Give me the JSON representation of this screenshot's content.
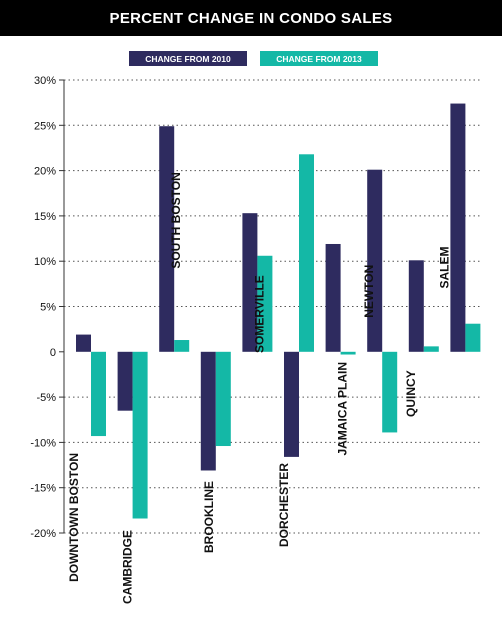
{
  "chart_data": {
    "type": "bar",
    "title": "PERCENT CHANGE IN CONDO SALES",
    "xlabel": "",
    "ylabel": "",
    "ylim": [
      -20,
      30
    ],
    "yticks": [
      30,
      25,
      20,
      15,
      10,
      5,
      0,
      -5,
      -10,
      -15,
      -20
    ],
    "ytick_labels": [
      "30%",
      "25%",
      "20%",
      "15%",
      "10%",
      "5%",
      "0",
      "-5%",
      "-10%",
      "-15%",
      "-20%"
    ],
    "grid": true,
    "legend_placement": "top",
    "categories": [
      "DOWNTOWN BOSTON",
      "CAMBRIDGE",
      "SOUTH BOSTON",
      "BROOKLINE",
      "SOMERVILLE",
      "DORCHESTER",
      "JAMAICA PLAIN",
      "NEWTON",
      "QUINCY",
      "SALEM"
    ],
    "series": [
      {
        "name": "CHANGE FROM 2010",
        "color": "#2e2b5f",
        "values": [
          1.9,
          -6.5,
          24.9,
          -13.1,
          15.3,
          -11.6,
          11.9,
          20.1,
          10.1,
          27.4
        ]
      },
      {
        "name": "CHANGE FROM 2013",
        "color": "#14b8a6",
        "values": [
          -9.3,
          -18.4,
          1.3,
          -10.4,
          10.6,
          21.8,
          -0.3,
          -8.9,
          0.6,
          3.1
        ]
      }
    ]
  }
}
